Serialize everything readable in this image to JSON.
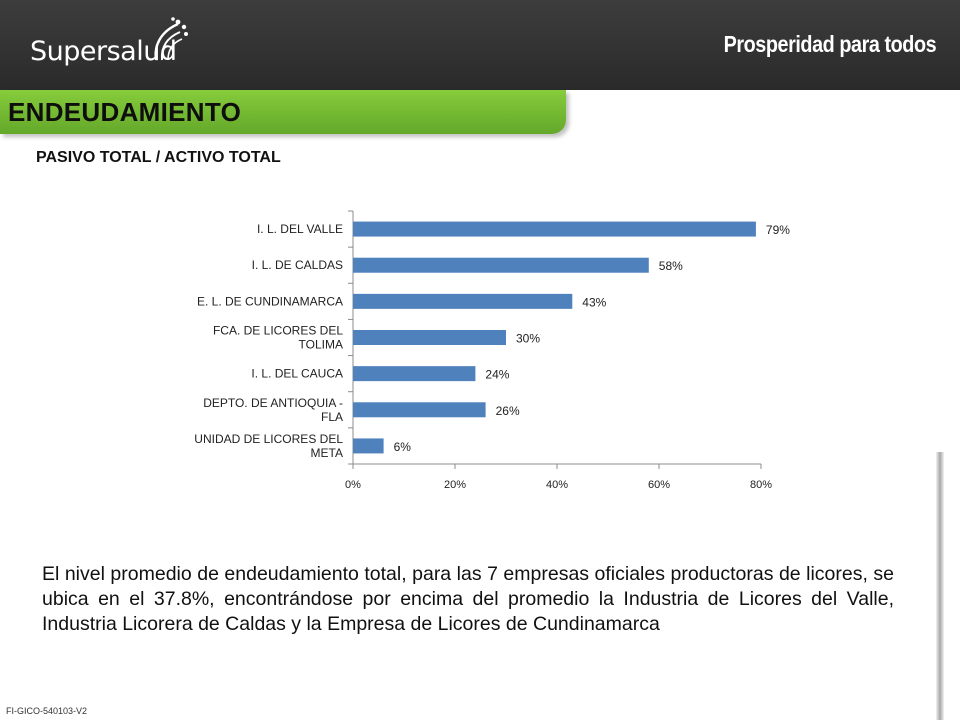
{
  "header": {
    "brand_left": "Supersalud",
    "brand_right": "Prosperidad para todos"
  },
  "banner": {
    "title": "ENDEUDAMIENTO"
  },
  "subtitle": "PASIVO TOTAL / ACTIVO TOTAL",
  "chart_data": {
    "type": "bar",
    "orientation": "horizontal",
    "categories": [
      "I. L. DEL VALLE",
      "I. L. DE CALDAS",
      "E. L. DE CUNDINAMARCA",
      "FCA. DE LICORES DEL TOLIMA",
      "I. L. DEL CAUCA",
      "DEPTO. DE ANTIOQUIA - FLA",
      "UNIDAD DE LICORES DEL META"
    ],
    "category_lines": [
      [
        "I. L. DEL VALLE"
      ],
      [
        "I. L. DE CALDAS"
      ],
      [
        "E. L. DE CUNDINAMARCA"
      ],
      [
        "FCA. DE LICORES DEL",
        "TOLIMA"
      ],
      [
        "I. L. DEL CAUCA"
      ],
      [
        "DEPTO. DE ANTIOQUIA -",
        "FLA"
      ],
      [
        "UNIDAD DE LICORES DEL",
        "META"
      ]
    ],
    "values": [
      79,
      58,
      43,
      30,
      24,
      26,
      6
    ],
    "data_labels": [
      "79%",
      "58%",
      "43%",
      "30%",
      "24%",
      "26%",
      "6%"
    ],
    "xlim": [
      0,
      80
    ],
    "x_ticks": [
      0,
      20,
      40,
      60,
      80
    ],
    "x_tick_labels": [
      "0%",
      "20%",
      "40%",
      "60%",
      "80%"
    ],
    "bar_color": "#4f81bd",
    "grid": false,
    "legend": "none"
  },
  "paragraph": "El nivel promedio de endeudamiento total, para las 7 empresas oficiales productoras de licores, se ubica en el 37.8%, encontrándose por encima del promedio la Industria de Licores del Valle, Industria Licorera de Caldas y la Empresa de Licores de Cundinamarca",
  "footer": "FI-GICO-540103-V2"
}
